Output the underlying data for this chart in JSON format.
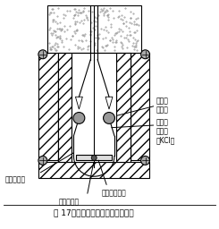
{
  "title": "図 17　電極法酸素計測器の構造例",
  "bg_color": "#ffffff",
  "labels": {
    "silver_electrode": "銀電極\n（＋）",
    "electrolyte": "電解質\nゼリー\n（KCl）",
    "gold_electrode": "金電極（－）",
    "teflon": "テフロン膜",
    "thermistor": "サーミスタ"
  },
  "figsize": [
    2.45,
    2.56
  ],
  "dpi": 100
}
